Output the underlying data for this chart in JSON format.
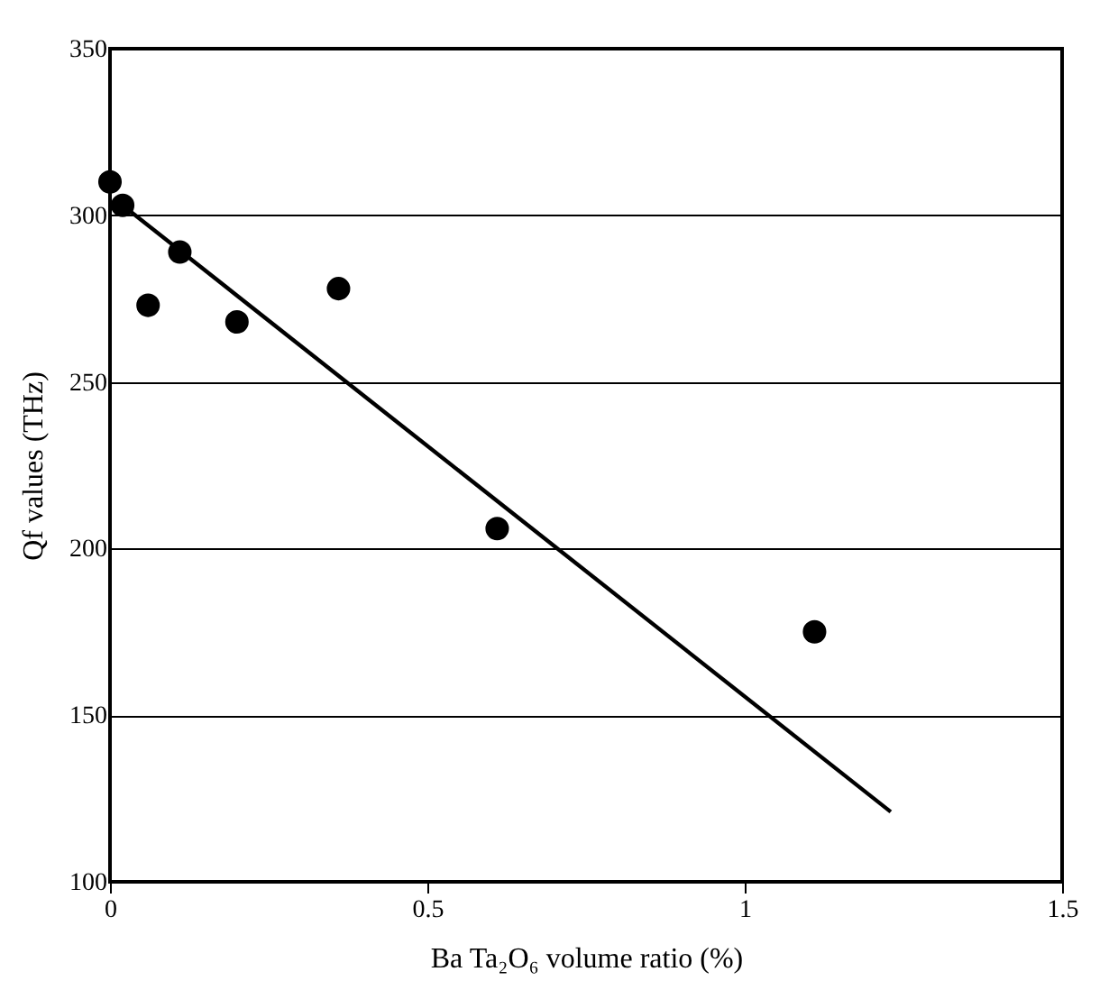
{
  "chart_data": {
    "type": "scatter",
    "xlabel": "Ba Ta₂O₆ volume ratio (%)",
    "ylabel": "Qf values (THz)",
    "x": [
      0,
      0.02,
      0.06,
      0.11,
      0.2,
      0.36,
      0.61,
      1.11
    ],
    "series": [
      {
        "color": "#000000",
        "values": [
          310,
          303,
          273,
          289,
          268,
          278,
          206,
          175
        ]
      },
      {
        "type": "line",
        "color": "#000000",
        "marker": "none",
        "x": [
          0.02,
          1.23
        ],
        "values": [
          303,
          121
        ]
      }
    ],
    "marker": "circle",
    "xlim": [
      0,
      1.5
    ],
    "xticks": [
      0,
      0.5,
      1,
      1.5
    ],
    "ylim": [
      100,
      350
    ],
    "yticks": [
      100,
      150,
      200,
      250,
      300,
      350
    ],
    "grid": "y"
  }
}
